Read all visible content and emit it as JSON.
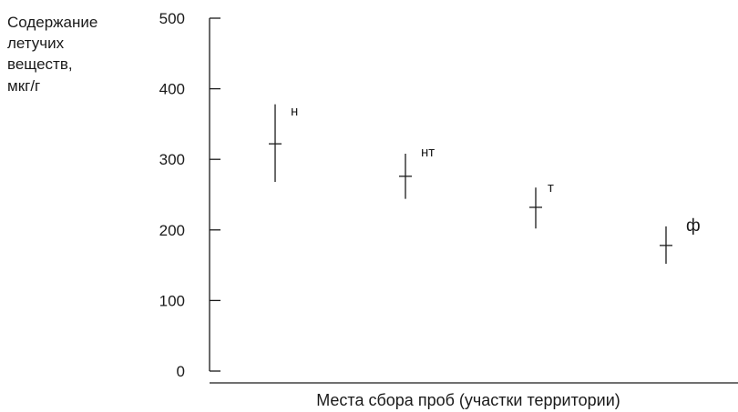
{
  "chart_data": {
    "type": "scatter",
    "title": "",
    "ylabel_lines": [
      "Содержание",
      "летучих",
      "веществ,",
      "мкг/г"
    ],
    "xlabel": "Места сбора проб (участки территории)",
    "ylim": [
      0,
      500
    ],
    "yticks": [
      0,
      100,
      200,
      300,
      400,
      500
    ],
    "ytick_labels": [
      "0",
      "100",
      "200",
      "300",
      "400",
      "500"
    ],
    "grid": false,
    "points": [
      {
        "label": "н",
        "y": 322,
        "low": 268,
        "high": 378
      },
      {
        "label": "нт",
        "y": 276,
        "low": 244,
        "high": 308
      },
      {
        "label": "т",
        "y": 232,
        "low": 202,
        "high": 260
      },
      {
        "label": "ф",
        "y": 178,
        "low": 152,
        "high": 205
      }
    ]
  }
}
